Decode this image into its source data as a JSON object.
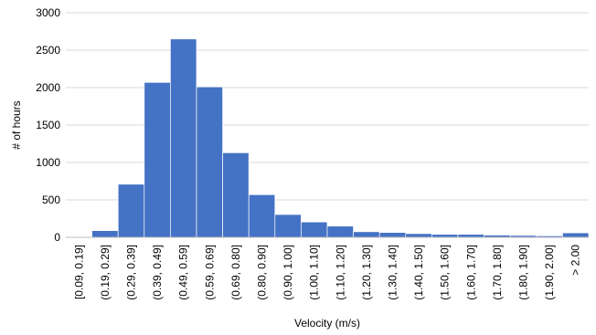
{
  "chart_data": {
    "type": "bar",
    "title": "",
    "xlabel": "Velocity (m/s)",
    "ylabel": "# of hours",
    "ylim": [
      0,
      3000
    ],
    "yticks": [
      0,
      500,
      1000,
      1500,
      2000,
      2500,
      3000
    ],
    "grid": true,
    "legend": "none",
    "bar_color": "#4472C4",
    "categories": [
      "[0.09, 0.19]",
      "(0.19, 0.29]",
      "(0.29, 0.39]",
      "(0.39, 0.49]",
      "(0.49, 0.59]",
      "(0.59, 0.69]",
      "(0.69, 0.80]",
      "(0.80, 0.90]",
      "(0.90, 1.00]",
      "(1.00, 1.10]",
      "(1.10, 1.20]",
      "(1.20, 1.30]",
      "(1.30, 1.40]",
      "(1.40, 1.50]",
      "(1.50, 1.60]",
      "(1.60, 1.70]",
      "(1.70, 1.80]",
      "(1.80, 1.90]",
      "(1.90, 2.00]",
      "> 2.00"
    ],
    "values": [
      5,
      90,
      710,
      2070,
      2650,
      2010,
      1130,
      570,
      305,
      205,
      150,
      75,
      65,
      50,
      40,
      40,
      30,
      25,
      20,
      60
    ]
  }
}
